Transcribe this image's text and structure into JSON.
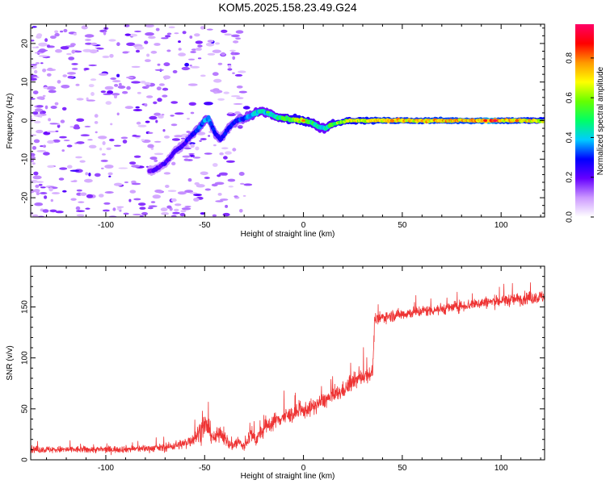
{
  "title": "KOM5.2025.158.23.49.G24",
  "chart_data": [
    {
      "type": "heatmap",
      "title": "KOM5.2025.158.23.49.G24",
      "xlabel": "Height of straight line (km)",
      "ylabel": "Frequency (Hz)",
      "xlim": [
        -138,
        122
      ],
      "ylim": [
        -25,
        25
      ],
      "x_ticks": [
        -100,
        -50,
        0,
        50,
        100
      ],
      "y_ticks": [
        -20,
        -10,
        0,
        10,
        20
      ],
      "colorbar": {
        "label": "Normalized spectral amplitude",
        "range": [
          0,
          0.97
        ],
        "ticks": [
          "0.0",
          "0.2",
          "0.4",
          "0.6",
          "0.8"
        ],
        "tick_values": [
          0,
          0.2,
          0.4,
          0.6,
          0.8
        ],
        "colors": [
          "#ffffff",
          "#cc99ff",
          "#6600ff",
          "#0000ff",
          "#00ccff",
          "#00ff66",
          "#66ff00",
          "#ffff00",
          "#ff9900",
          "#ff0000",
          "#ff0066"
        ]
      },
      "ridge": {
        "x": [
          -76,
          -70,
          -65,
          -60,
          -57,
          -53,
          -50,
          -48,
          -45,
          -42,
          -38,
          -34,
          -30,
          -26,
          -22,
          -18,
          -14,
          -10,
          -5,
          0,
          4,
          8,
          11,
          14,
          18,
          22,
          30,
          40,
          50,
          60,
          70,
          80,
          90,
          95,
          100,
          105,
          110,
          115,
          122
        ],
        "y": [
          -13,
          -11,
          -8,
          -6,
          -4,
          -2,
          0,
          0.5,
          -3,
          -5,
          -2,
          0,
          0.5,
          1.5,
          2.5,
          2,
          1,
          0.5,
          0.3,
          0,
          -0.5,
          -1.7,
          -2,
          -1,
          -0.5,
          0,
          0,
          0,
          0,
          0,
          0,
          0,
          0,
          0,
          0,
          0,
          0,
          0,
          0
        ],
        "amplitude": [
          0.2,
          0.22,
          0.22,
          0.24,
          0.26,
          0.3,
          0.35,
          0.35,
          0.28,
          0.26,
          0.28,
          0.3,
          0.32,
          0.38,
          0.42,
          0.4,
          0.42,
          0.5,
          0.55,
          0.6,
          0.5,
          0.42,
          0.42,
          0.5,
          0.6,
          0.62,
          0.66,
          0.7,
          0.7,
          0.7,
          0.72,
          0.72,
          0.74,
          0.85,
          0.7,
          0.72,
          0.7,
          0.68,
          0.66
        ]
      }
    },
    {
      "type": "line",
      "xlabel": "Height of straight line (km)",
      "ylabel": "SNR (v/v)",
      "xlim": [
        -138,
        122
      ],
      "ylim": [
        0,
        190
      ],
      "x_ticks": [
        -100,
        -50,
        0,
        50,
        100
      ],
      "y_ticks": [
        0,
        50,
        100,
        150
      ],
      "series_color": "#ee3333",
      "envelope": {
        "x": [
          -138,
          -120,
          -100,
          -80,
          -70,
          -60,
          -55,
          -52,
          -50,
          -48,
          -45,
          -42,
          -38,
          -35,
          -33,
          -30,
          -27,
          -24,
          -20,
          -15,
          -10,
          -5,
          0,
          5,
          10,
          15,
          20,
          25,
          30,
          35,
          36,
          40,
          50,
          60,
          70,
          80,
          90,
          100,
          110,
          122
        ],
        "mean": [
          10,
          10,
          10,
          11,
          12,
          16,
          22,
          28,
          35,
          30,
          20,
          28,
          15,
          15,
          18,
          12,
          25,
          20,
          30,
          38,
          42,
          45,
          48,
          52,
          58,
          62,
          68,
          76,
          82,
          86,
          135,
          140,
          143,
          146,
          148,
          151,
          154,
          156,
          158,
          160
        ],
        "noise": [
          6,
          6,
          6,
          6,
          7,
          9,
          14,
          20,
          22,
          18,
          12,
          14,
          10,
          12,
          12,
          10,
          14,
          12,
          14,
          14,
          14,
          14,
          14,
          14,
          14,
          14,
          14,
          14,
          14,
          14,
          11,
          10,
          10,
          10,
          10,
          10,
          10,
          11,
          11,
          11
        ]
      }
    }
  ]
}
